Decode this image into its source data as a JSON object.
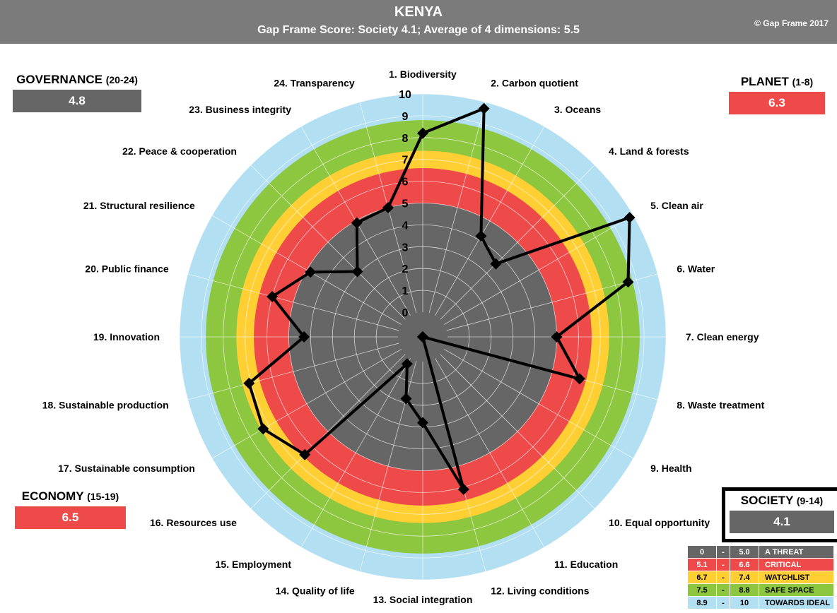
{
  "header": {
    "title": "KENYA",
    "subtitle": "Gap Frame Score: Society 4.1;    Average of 4 dimensions: 5.5",
    "copyright": "© Gap Frame 2017"
  },
  "dimensions": {
    "governance": {
      "title": "GOVERNANCE",
      "range": "(20-24)",
      "value": "4.8",
      "color": "#666666"
    },
    "planet": {
      "title": "PLANET",
      "range": "(1-8)",
      "value": "6.3",
      "color": "#ef4a4a"
    },
    "economy": {
      "title": "ECONOMY",
      "range": "(15-19)",
      "value": "6.5",
      "color": "#ef4a4a"
    },
    "society": {
      "title": "SOCIETY",
      "range": "(9-14)",
      "value": "4.1",
      "color": "#666666"
    }
  },
  "legend": [
    {
      "from": "0",
      "to": "5.0",
      "label": "A THREAT",
      "color": "#666666",
      "text_color": "#ffffff"
    },
    {
      "from": "5.1",
      "to": "6.6",
      "label": "CRITICAL",
      "color": "#ef4a4a",
      "text_color": "#ffffff"
    },
    {
      "from": "6.7",
      "to": "7.4",
      "label": "WATCHLIST",
      "color": "#ffcf33",
      "text_color": "#000000"
    },
    {
      "from": "7.5",
      "to": "8.8",
      "label": "SAFE SPACE",
      "color": "#8dc63f",
      "text_color": "#000000"
    },
    {
      "from": "8.9",
      "to": "10",
      "label": "TOWARDS IDEAL",
      "color": "#b3dff2",
      "text_color": "#000000"
    }
  ],
  "chart_data": {
    "type": "radar",
    "title": "KENYA",
    "axis_range": [
      0,
      10
    ],
    "tick_labels": [
      "0",
      "1",
      "2",
      "3",
      "4",
      "5",
      "6",
      "7",
      "8",
      "9",
      "10"
    ],
    "categories": [
      "1. Biodiversity",
      "2. Carbon quotient",
      "3. Oceans",
      "4. Land & forests",
      "5. Clean air",
      "6. Water",
      "7. Clean energy",
      "8. Waste treatment",
      "9. Health",
      "10. Equal opportunity",
      "11. Education",
      "12. Living conditions",
      "13. Social integration",
      "14. Quality of life",
      "15. Employment",
      "16. Resources use",
      "17. Sustainable consumption",
      "18. Sustainable production",
      "19. Innovation",
      "20. Public finance",
      "21. Structural resilience",
      "22. Peace & cooperation",
      "23. Business integrity",
      "24. Transparency"
    ],
    "series": [
      {
        "values": [
          8.2,
          9.7,
          4.2,
          3.6,
          9.8,
          8.6,
          5.0,
          6.3,
          0,
          0,
          0,
          6.1,
          2.8,
          1.8,
          0.3,
          6.5,
          7.3,
          7.1,
          4.3,
          6.0,
          4.8,
          3.1,
          4.9,
          5.0
        ],
        "color": "#000000"
      }
    ],
    "bands": [
      {
        "from": 0,
        "to": 5.0,
        "color": "#666666"
      },
      {
        "from": 5.0,
        "to": 6.6,
        "color": "#ef4a4a"
      },
      {
        "from": 6.6,
        "to": 7.4,
        "color": "#ffcf33"
      },
      {
        "from": 7.4,
        "to": 8.8,
        "color": "#8dc63f"
      },
      {
        "from": 8.8,
        "to": 10,
        "color": "#b3dff2"
      }
    ],
    "grid": true
  }
}
